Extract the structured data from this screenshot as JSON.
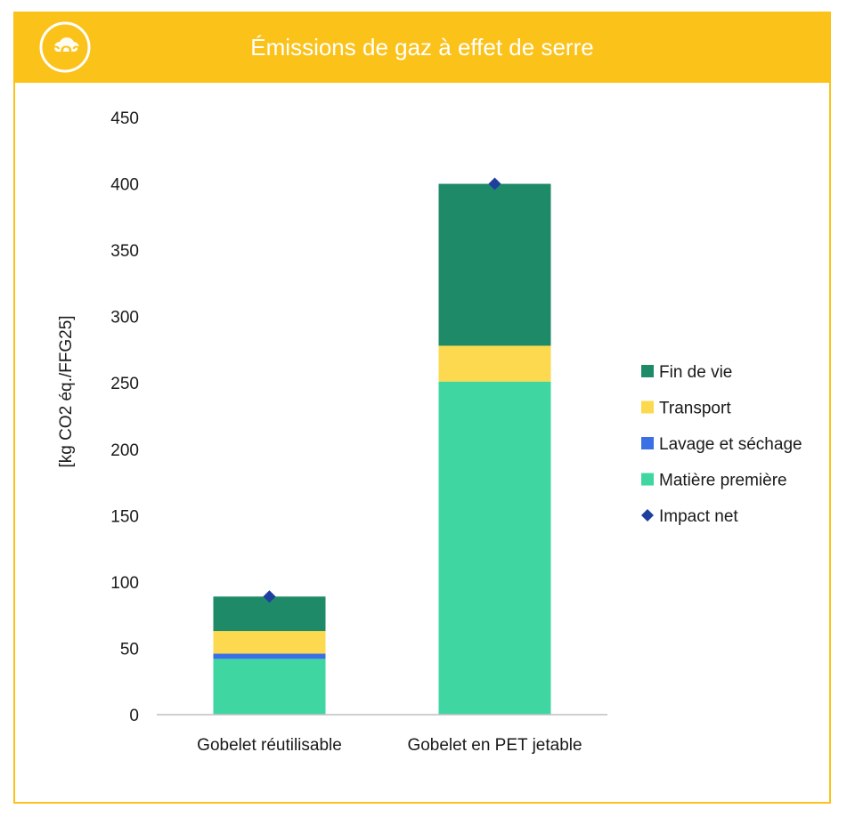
{
  "header": {
    "title": "Émissions de gaz à effet de serre",
    "logo_text": "CO2",
    "logo_icon": "co2-cloud-icon"
  },
  "colors": {
    "banner": "#FBC21A",
    "fin_de_vie": "#1F8A67",
    "transport": "#FCD94E",
    "lavage": "#3B6FE6",
    "matiere": "#3FD6A2",
    "impact": "#1F3F9E"
  },
  "chart_data": {
    "type": "bar",
    "stacked": true,
    "categories": [
      "Gobelet réutilisable",
      "Gobelet en PET jetable"
    ],
    "series": [
      {
        "name": "Matière première",
        "values": [
          42,
          251
        ],
        "color": "#3FD6A2"
      },
      {
        "name": "Lavage et séchage",
        "values": [
          4,
          0
        ],
        "color": "#3B6FE6"
      },
      {
        "name": "Transport",
        "values": [
          17,
          27
        ],
        "color": "#FCD94E"
      },
      {
        "name": "Fin de vie",
        "values": [
          26,
          122
        ],
        "color": "#1F8A67"
      }
    ],
    "impact_net": {
      "name": "Impact net",
      "values": [
        89,
        400
      ],
      "color": "#1F3F9E",
      "marker": "diamond"
    },
    "ylabel": "[kg CO2 éq./FFG25]",
    "xlabel": "",
    "ylim": [
      0,
      450
    ],
    "yticks": [
      0,
      50,
      100,
      150,
      200,
      250,
      300,
      350,
      400,
      450
    ],
    "grid": false,
    "legend_position": "right",
    "legend": [
      "Fin de vie",
      "Transport",
      "Lavage et séchage",
      "Matière première",
      "Impact net"
    ]
  }
}
